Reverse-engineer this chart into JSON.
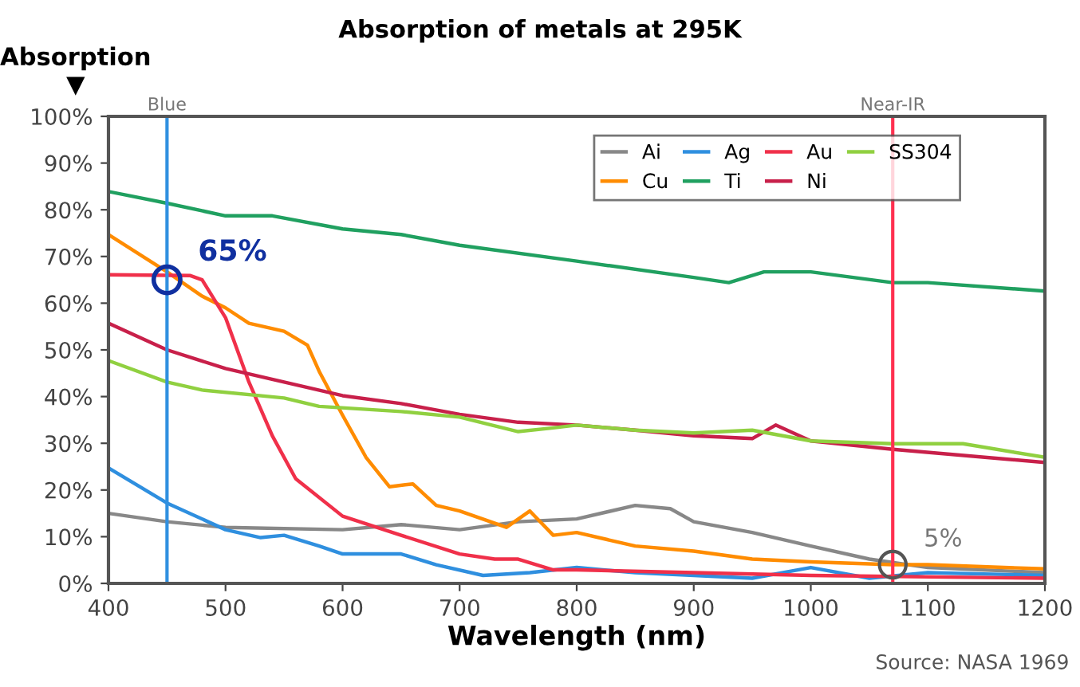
{
  "chart_data": {
    "type": "line",
    "title": "Absorption of metals at 295K",
    "xlabel": "Wavelength (nm)",
    "ylabel": "Absorption\n▼",
    "xlim": [
      400,
      1200
    ],
    "xticks": [
      400,
      500,
      600,
      700,
      800,
      900,
      1000,
      1100,
      1200
    ],
    "ylim": [
      0,
      100
    ],
    "yticks": [
      {
        "value": 0,
        "label": "0%"
      },
      {
        "value": 10,
        "label": "10%"
      },
      {
        "value": 20,
        "label": "20%"
      },
      {
        "value": 30,
        "label": "30%"
      },
      {
        "value": 40,
        "label": "40%"
      },
      {
        "value": 50,
        "label": "50%"
      },
      {
        "value": 60,
        "label": "60%"
      },
      {
        "value": 70,
        "label": "70%"
      },
      {
        "value": 80,
        "label": "80%"
      },
      {
        "value": 90,
        "label": "90%"
      },
      {
        "value": 100,
        "label": "100%"
      }
    ],
    "grid": false,
    "legend": "top right",
    "series": [
      {
        "name": "Ai",
        "color": "#888888",
        "x": [
          400,
          450,
          500,
          600,
          650,
          700,
          750,
          800,
          850,
          880,
          900,
          950,
          1000,
          1050,
          1100,
          1200
        ],
        "values": [
          15,
          13.2,
          12,
          11.5,
          12.6,
          11.5,
          13.2,
          13.8,
          16.7,
          16,
          13.2,
          10.9,
          8,
          5.2,
          3.4,
          2.3
        ]
      },
      {
        "name": "Cu",
        "color": "#ff8c00",
        "x": [
          400,
          450,
          480,
          500,
          520,
          550,
          570,
          580,
          600,
          620,
          640,
          660,
          680,
          700,
          740,
          760,
          780,
          800,
          850,
          900,
          950,
          1000,
          1070,
          1100,
          1200
        ],
        "values": [
          74.7,
          66.7,
          61.5,
          59,
          55.7,
          54,
          51,
          45.4,
          36,
          27,
          20.7,
          21.3,
          16.7,
          15.5,
          12,
          15.5,
          10.3,
          10.9,
          8,
          6.9,
          5.2,
          4.6,
          4,
          4,
          3.1
        ]
      },
      {
        "name": "Ag",
        "color": "#2f8fdf",
        "x": [
          400,
          450,
          500,
          530,
          550,
          580,
          600,
          650,
          680,
          720,
          760,
          800,
          850,
          900,
          950,
          1000,
          1050,
          1100,
          1200
        ],
        "values": [
          24.7,
          17.2,
          11.5,
          9.8,
          10.3,
          8,
          6.3,
          6.3,
          4,
          1.7,
          2.3,
          3.4,
          2.3,
          1.7,
          1.1,
          3.4,
          1.1,
          2.3,
          1.7
        ]
      },
      {
        "name": "Ti",
        "color": "#20a060",
        "x": [
          400,
          450,
          500,
          540,
          600,
          650,
          700,
          800,
          900,
          930,
          960,
          1000,
          1070,
          1100,
          1200
        ],
        "values": [
          83.9,
          81.4,
          78.7,
          78.7,
          75.9,
          74.7,
          72.4,
          69,
          65.5,
          64.4,
          66.7,
          66.7,
          64.4,
          64.4,
          62.6
        ]
      },
      {
        "name": "Au",
        "color": "#f0304a",
        "x": [
          400,
          470,
          480,
          500,
          520,
          540,
          560,
          600,
          650,
          700,
          730,
          750,
          780,
          800,
          900,
          1000,
          1200
        ],
        "values": [
          66.1,
          65.9,
          65,
          56.9,
          43.1,
          31.6,
          22.4,
          14.4,
          10.3,
          6.3,
          5.2,
          5.2,
          2.9,
          2.9,
          2.3,
          1.7,
          1.1
        ]
      },
      {
        "name": "Ni",
        "color": "#c8204a",
        "x": [
          400,
          450,
          500,
          550,
          600,
          650,
          700,
          750,
          800,
          850,
          900,
          950,
          970,
          1000,
          1070,
          1200
        ],
        "values": [
          55.7,
          50,
          46,
          43.1,
          40.2,
          38.5,
          36.2,
          34.5,
          33.9,
          32.8,
          31.6,
          31,
          33.9,
          30.5,
          28.7,
          25.9
        ]
      },
      {
        "name": "SS304",
        "color": "#90d040",
        "x": [
          400,
          450,
          480,
          550,
          580,
          650,
          700,
          750,
          780,
          800,
          850,
          900,
          950,
          1000,
          1070,
          1130,
          1200
        ],
        "values": [
          47.7,
          43.1,
          41.4,
          39.7,
          37.9,
          36.8,
          35.6,
          32.5,
          33.3,
          33.9,
          32.8,
          32.2,
          32.8,
          30.5,
          29.9,
          29.9,
          27
        ]
      }
    ],
    "ref_lines": [
      {
        "axis": "x",
        "value": 450,
        "label": "Blue",
        "color": "#3090e0"
      },
      {
        "axis": "x",
        "value": 1070,
        "label": "Near-IR",
        "color": "#ff3050"
      }
    ],
    "annotations": [
      {
        "text": "65%",
        "x": 450,
        "y": 65
      },
      {
        "text": "5%",
        "x": 1070,
        "y": 4
      },
      "Source: NASA 1969"
    ]
  }
}
